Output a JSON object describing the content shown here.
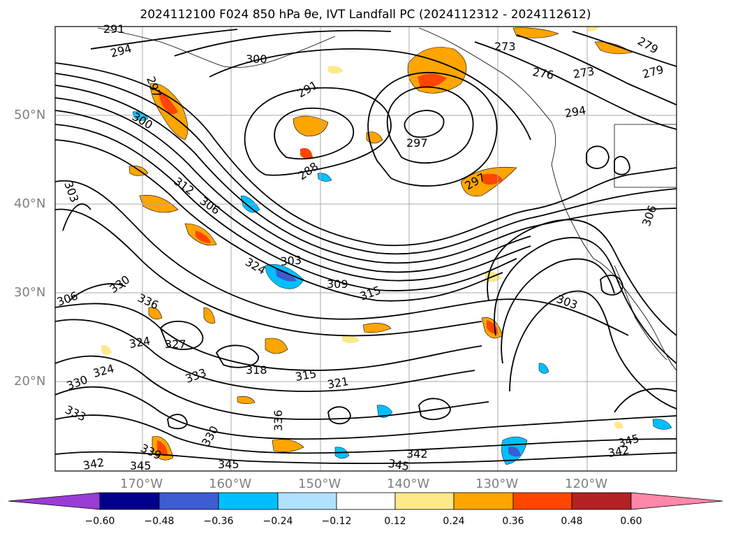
{
  "title": "2024112100 F024 850 hPa θe, IVT Landfall PC (2024112312 - 2024112612)",
  "map": {
    "lat_labels": [
      "50°N",
      "40°N",
      "30°N",
      "20°N"
    ],
    "lon_labels": [
      "170°W",
      "160°W",
      "150°W",
      "140°W",
      "130°W",
      "120°W"
    ],
    "contour_labels": [
      "291",
      "294",
      "297",
      "300",
      "300",
      "291",
      "288",
      "297",
      "273",
      "276",
      "273",
      "279",
      "279",
      "294",
      "297",
      "303",
      "312",
      "306",
      "324",
      "309",
      "315",
      "303",
      "306",
      "330",
      "336",
      "324",
      "327",
      "333",
      "324",
      "330",
      "318",
      "315",
      "321",
      "333",
      "339",
      "330",
      "336",
      "342",
      "345",
      "345",
      "342",
      "345",
      "342",
      "345",
      "303",
      "306"
    ]
  },
  "colorbar": {
    "ticks": [
      "−0.60",
      "−0.48",
      "−0.36",
      "−0.24",
      "−0.12",
      "0.12",
      "0.24",
      "0.36",
      "0.48",
      "0.60"
    ],
    "colors": [
      "#9b3bd6",
      "#00008b",
      "#3c5cd0",
      "#00bfff",
      "#b0e2ff",
      "#ffffff",
      "#fde98a",
      "#ffa500",
      "#ff4500",
      "#b22222",
      "#ff88aa"
    ]
  }
}
